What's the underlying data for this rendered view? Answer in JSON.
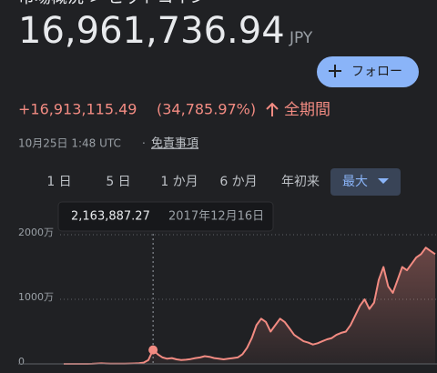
{
  "header": {
    "breadcrumb": "市場概況 > ビットコイン",
    "price": "16,961,736.94",
    "currency": "JPY",
    "follow_button": "フォロー",
    "change": "+16,913,115.49",
    "change_percent": "(34,785.97%)",
    "period": "全期間",
    "timestamp": "10月25日 1:48 UTC",
    "separator": "·",
    "disclaimer": "免責事項"
  },
  "tabs": [
    "1 日",
    "5 日",
    "1 か月",
    "6 か月",
    "年初来",
    "最大"
  ],
  "chart_data": {
    "type": "line",
    "color": "#f28b82",
    "values": [
      0,
      0,
      0,
      1000,
      1000,
      5000,
      10000,
      50000,
      80000,
      60000,
      30000,
      30000,
      25000,
      30000,
      50000,
      70000,
      100000,
      200000,
      600000,
      2163887.27,
      1500000,
      1000000,
      800000,
      900000,
      700000,
      600000,
      650000,
      750000,
      900000,
      1000000,
      1200000,
      1100000,
      900000,
      800000,
      700000,
      800000,
      900000,
      1000000,
      1500000,
      2500000,
      4000000,
      6000000,
      7000000,
      6500000,
      5000000,
      6000000,
      7000000,
      6500000,
      5500000,
      4500000,
      4000000,
      3500000,
      3300000,
      3000000,
      3200000,
      3500000,
      3800000,
      4000000,
      4500000,
      4800000,
      5000000,
      6000000,
      7500000,
      9000000,
      10000000,
      8500000,
      9500000,
      13000000,
      15000000,
      12000000,
      11000000,
      13000000,
      15000000,
      14500000,
      15500000,
      16500000,
      17000000,
      18000000,
      17500000,
      17000000
    ],
    "ylim": [
      0,
      20000000
    ],
    "yticks": [
      0,
      {
        "value": 10000000,
        "label": "1000万"
      },
      {
        "value": 20000000,
        "label": "2000万"
      }
    ],
    "grid": true,
    "tooltip": {
      "value_label": "2,163,887.27",
      "date": "2017年12月16日"
    }
  }
}
